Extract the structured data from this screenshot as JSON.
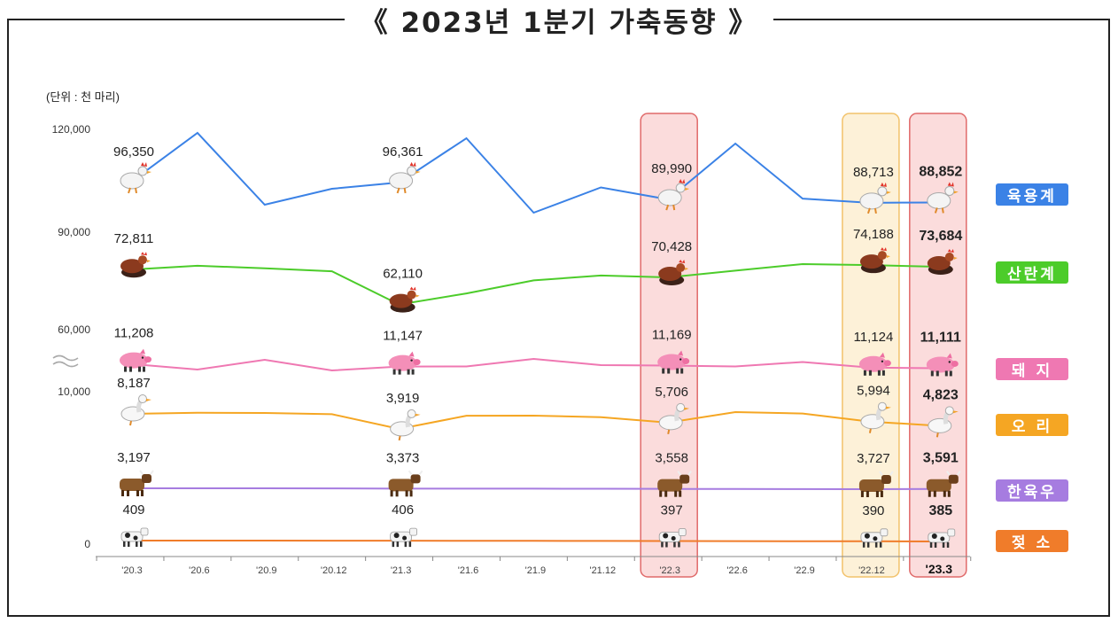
{
  "page": {
    "title": "《 2023년 1분기 가축동향 》",
    "unit": "(단위 : 천 마리)"
  },
  "chart_data": {
    "type": "line",
    "title": "《 2023년 1분기 가축동향 》",
    "unit": "(단위 : 천 마리)",
    "categories": [
      "'20.3",
      "'20.6",
      "'20.9",
      "'20.12",
      "'21.3",
      "'21.6",
      "'21.9",
      "'21.12",
      "'22.3",
      "'22.6",
      "'22.9",
      "'22.12",
      "'23.3"
    ],
    "y_ticks": [
      "120,000",
      "90,000",
      "60,000",
      "10,000",
      "0"
    ],
    "y_axis_break": "between 60,000 and 10,000",
    "highlighted_periods": [
      "'22.3",
      "'22.12",
      "'23.3"
    ],
    "series": [
      {
        "name": "육용계",
        "color": "#3b82e6",
        "icon": "chicken-icon",
        "values": [
          96350,
          115000,
          88000,
          94000,
          96361,
          113000,
          85000,
          94500,
          89990,
          111000,
          90300,
          88713,
          88852
        ]
      },
      {
        "name": "산란계",
        "color": "#4ccc2a",
        "icon": "hen-icon",
        "values": [
          72811,
          74000,
          73200,
          72300,
          62110,
          65500,
          69500,
          71000,
          70428,
          72500,
          74500,
          74188,
          73684
        ]
      },
      {
        "name": "돼  지",
        "color": "#ef78b2",
        "icon": "pig-icon",
        "values": [
          11208,
          11080,
          11300,
          11060,
          11147,
          11150,
          11320,
          11180,
          11169,
          11150,
          11250,
          11124,
          11111
        ]
      },
      {
        "name": "오  리",
        "color": "#f5a623",
        "icon": "duck-icon",
        "values": [
          8187,
          8500,
          8450,
          8100,
          3919,
          7650,
          7700,
          7250,
          5706,
          8700,
          8300,
          5994,
          4823
        ]
      },
      {
        "name": "한육우",
        "color": "#a67ce0",
        "icon": "cow-icon",
        "values": [
          3197,
          3210,
          3230,
          3250,
          3373,
          3400,
          3420,
          3460,
          3558,
          3600,
          3680,
          3727,
          3591
        ]
      },
      {
        "name": "젖  소",
        "color": "#f07c2a",
        "icon": "dairy-cow-icon",
        "values": [
          409,
          408,
          408,
          407,
          406,
          404,
          402,
          400,
          397,
          394,
          392,
          390,
          385
        ]
      }
    ],
    "labels": {
      "육용계": {
        "0": "96,350",
        "4": "96,361",
        "8": "89,990",
        "11": "88,713",
        "12": "88,852"
      },
      "산란계": {
        "0": "72,811",
        "4": "62,110",
        "8": "70,428",
        "11": "74,188",
        "12": "73,684"
      },
      "돼  지": {
        "0": "11,208",
        "4": "11,147",
        "8": "11,169",
        "11": "11,124",
        "12": "11,111"
      },
      "오  리": {
        "0": "8,187",
        "4": "3,919",
        "8": "5,706",
        "11": "5,994",
        "12": "4,823"
      },
      "한육우": {
        "0": "3,197",
        "4": "3,373",
        "8": "3,558",
        "11": "3,727",
        "12": "3,591"
      },
      "젖  소": {
        "0": "409",
        "4": "406",
        "8": "397",
        "11": "390",
        "12": "385"
      }
    }
  }
}
